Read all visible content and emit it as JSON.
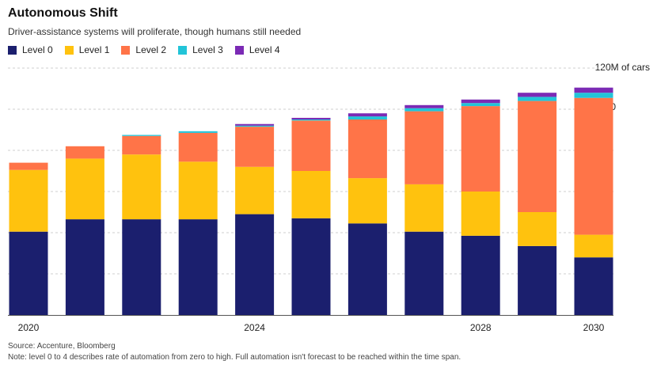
{
  "title": "Autonomous Shift",
  "subtitle": "Driver-assistance systems will proliferate, though humans still needed",
  "unit_label": "120M of cars",
  "source": "Source: Accenture, Bloomberg",
  "note": "Note: level 0 to 4 describes rate of automation from zero to high. Full automation isn't forecast to be reached within the time span.",
  "chart_data": {
    "type": "bar",
    "stacked": true,
    "categories": [
      "2020",
      "2021",
      "2022",
      "2023",
      "2024",
      "2025",
      "2026",
      "2027",
      "2028",
      "2029",
      "2030"
    ],
    "x_tick_labels": [
      "2020",
      "",
      "",
      "",
      "2024",
      "",
      "",
      "",
      "2028",
      "",
      "2030"
    ],
    "series": [
      {
        "name": "Level 0",
        "color": "#1b1f6e",
        "values": [
          40.5,
          46.5,
          46.5,
          46.5,
          49,
          47,
          44.5,
          40.5,
          38.5,
          33.5,
          28
        ]
      },
      {
        "name": "Level 1",
        "color": "#ffc20e",
        "values": [
          30,
          29.5,
          31.5,
          28,
          23,
          23,
          22,
          23,
          21.5,
          16.5,
          11
        ]
      },
      {
        "name": "Level 2",
        "color": "#ff7448",
        "values": [
          3.5,
          6,
          9,
          14,
          19.5,
          24.5,
          28.5,
          35.5,
          41.5,
          54,
          66.5
        ]
      },
      {
        "name": "Level 3",
        "color": "#22c4d8",
        "values": [
          0,
          0,
          0.5,
          0.8,
          0.5,
          0.5,
          1.5,
          1.5,
          1.5,
          2,
          2.5
        ]
      },
      {
        "name": "Level 4",
        "color": "#7b2ab5",
        "values": [
          0,
          0,
          0,
          0,
          0.8,
          0.8,
          1.5,
          1.5,
          1.7,
          2,
          2.5
        ]
      }
    ],
    "y_ticks": [
      20,
      40,
      60,
      80,
      100
    ],
    "ylim": [
      0,
      120
    ],
    "grid": true,
    "legend_position": "top-left",
    "y_axis_position": "right"
  }
}
